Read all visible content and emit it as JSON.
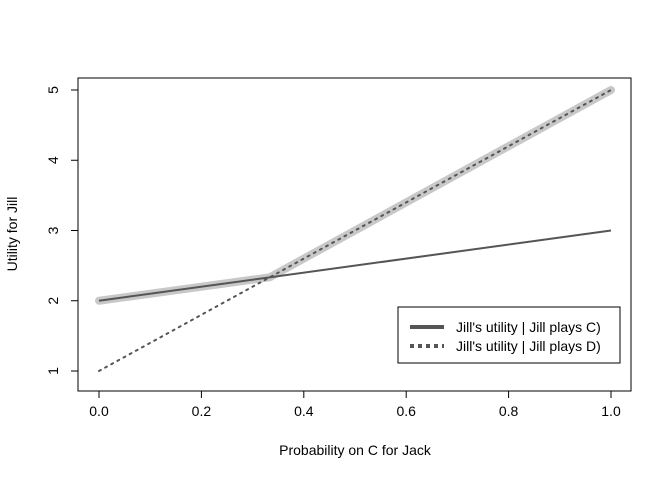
{
  "chart_data": {
    "type": "line",
    "title": "",
    "xlabel": "Probability on C for Jack",
    "ylabel": "Utility for Jill",
    "xlim": [
      0,
      1
    ],
    "ylim": [
      1,
      5
    ],
    "x_ticks": [
      "0.0",
      "0.2",
      "0.4",
      "0.6",
      "0.8",
      "1.0"
    ],
    "x_tick_values": [
      0,
      0.2,
      0.4,
      0.6,
      0.8,
      1.0
    ],
    "y_ticks": [
      "1",
      "2",
      "3",
      "4",
      "5"
    ],
    "y_tick_values": [
      1,
      2,
      3,
      4,
      5
    ],
    "grid": false,
    "legend_position": "bottom-right",
    "series": [
      {
        "name": "Jill's utility | Jill plays C)",
        "style": "solid",
        "color": "#555555",
        "x": [
          0,
          1
        ],
        "y": [
          2,
          3
        ]
      },
      {
        "name": "Jill's utility | Jill plays D)",
        "style": "dotted",
        "color": "#555555",
        "x": [
          0,
          1
        ],
        "y": [
          1,
          5
        ]
      }
    ],
    "highlight": {
      "description_color": "#c8c8c8",
      "x": [
        0,
        0.3333,
        1
      ],
      "y": [
        2,
        2.3333,
        5
      ]
    }
  }
}
